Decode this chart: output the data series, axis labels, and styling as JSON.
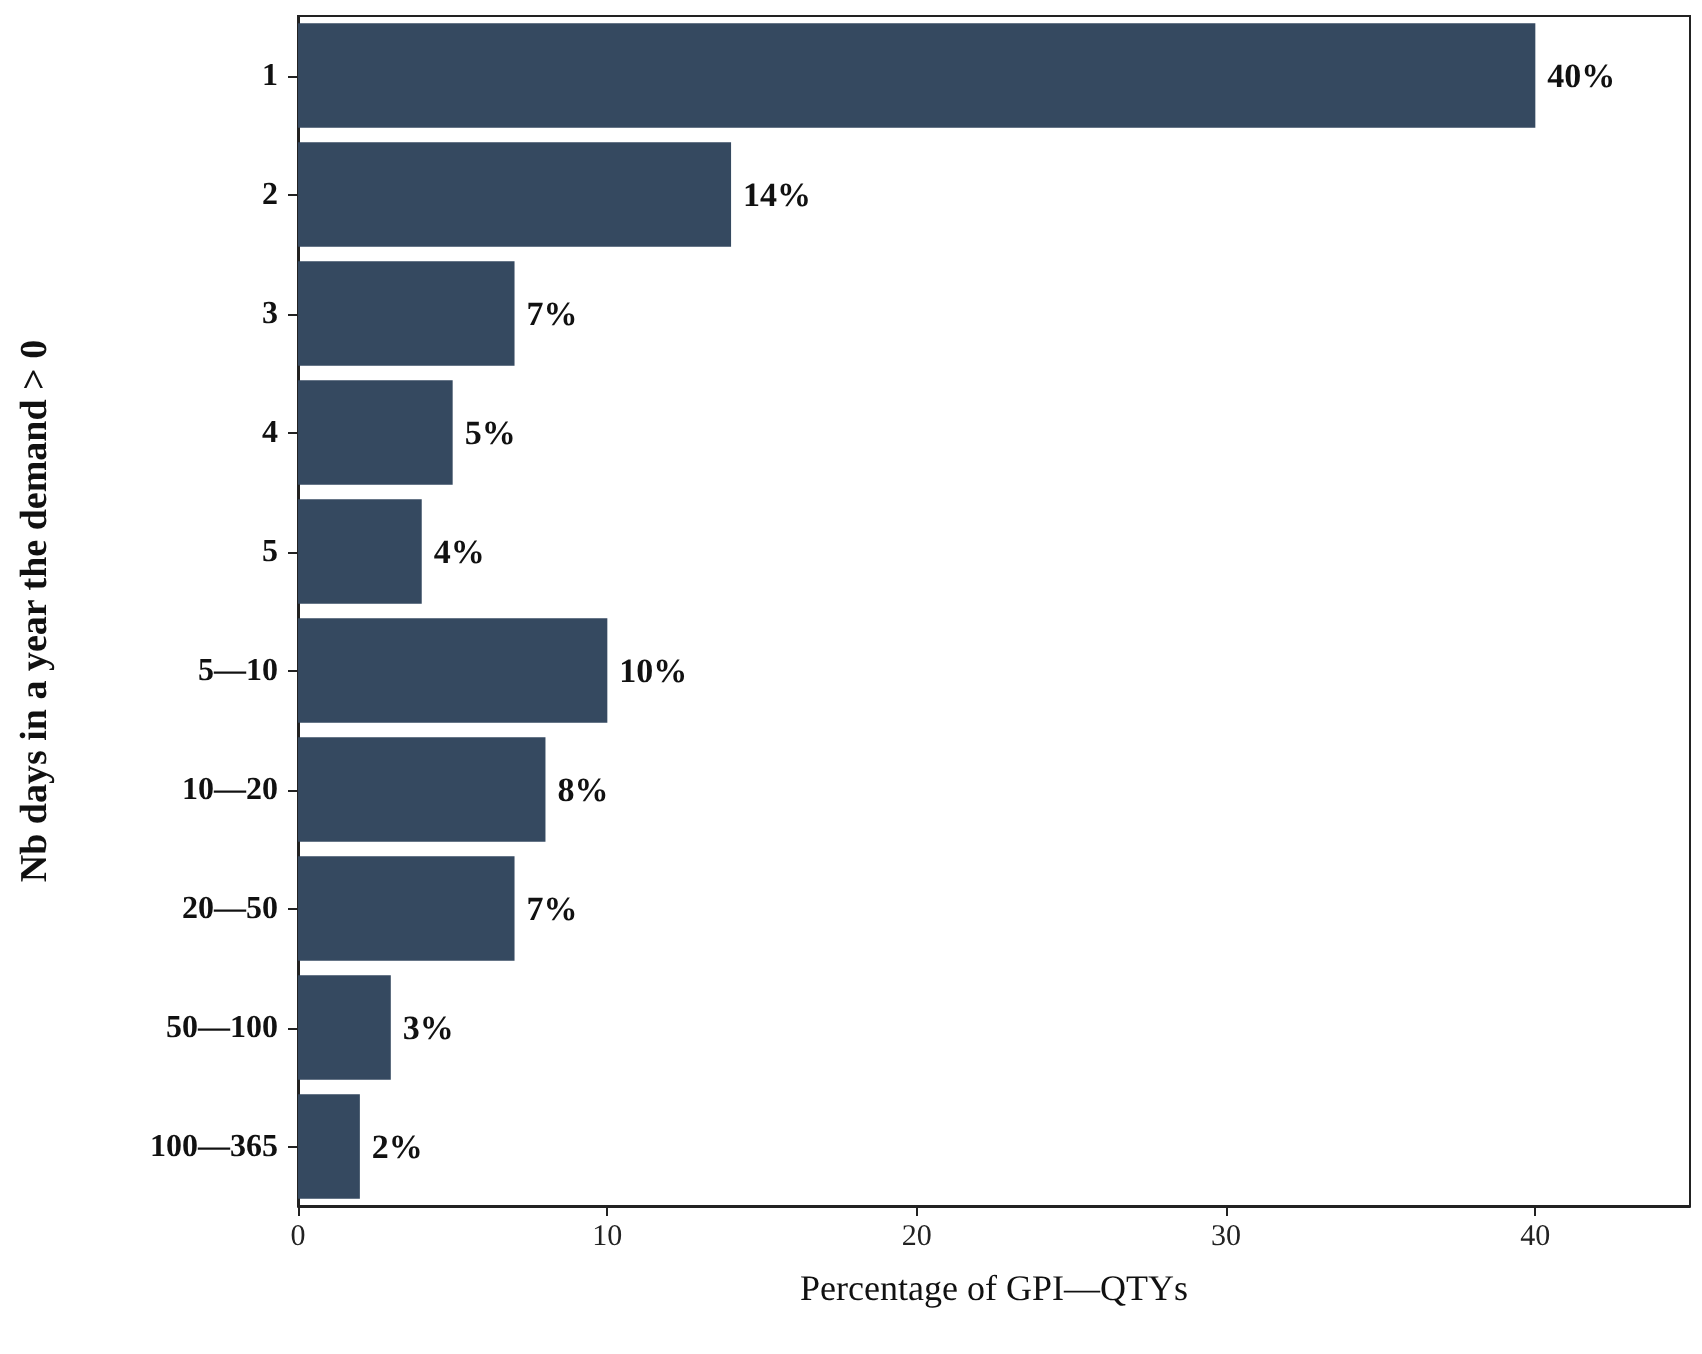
{
  "chart_data": {
    "type": "bar",
    "orientation": "horizontal",
    "xlabel": "Percentage of GPI—QTYs",
    "ylabel": "Nb days in a year the demand > 0",
    "categories": [
      "1",
      "2",
      "3",
      "4",
      "5",
      "5—10",
      "10—20",
      "20—50",
      "50—100",
      "100—365"
    ],
    "values": [
      40,
      14,
      7,
      5,
      4,
      10,
      8,
      7,
      3,
      2
    ],
    "value_labels": [
      "40%",
      "14%",
      "7%",
      "5%",
      "4%",
      "10%",
      "8%",
      "7%",
      "3%",
      "2%"
    ],
    "color": "#354960",
    "xlim": [
      0,
      45
    ],
    "xticks": [
      0,
      10,
      20,
      30,
      40
    ]
  }
}
